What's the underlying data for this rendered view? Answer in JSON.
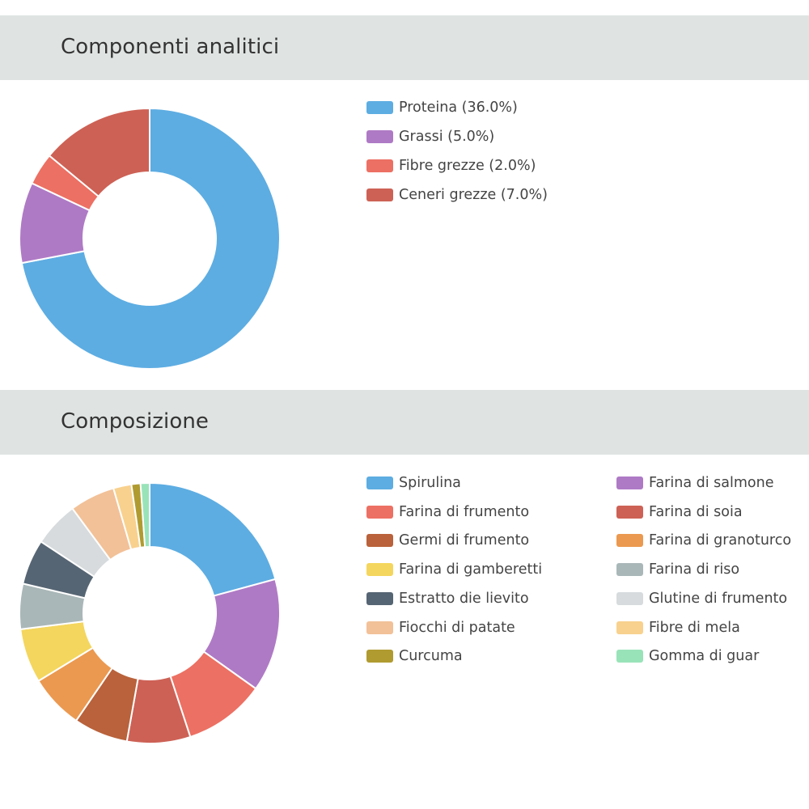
{
  "sections": [
    {
      "title": "Componenti analitici",
      "chart_data": {
        "type": "pie",
        "variant": "donut",
        "title": "Componenti analitici",
        "categories": [
          "Proteina",
          "Grassi",
          "Fibre grezze",
          "Ceneri grezze"
        ],
        "values": [
          36.0,
          5.0,
          2.0,
          7.0
        ],
        "legend_labels": [
          "Proteina (36.0%)",
          "Grassi (5.0%)",
          "Fibre grezze (2.0%)",
          "Ceneri grezze (7.0%)"
        ],
        "colors": [
          "#5dade2",
          "#af7ac5",
          "#ec7063",
          "#cd6155"
        ],
        "legend_position": "right"
      }
    },
    {
      "title": "Composizione",
      "chart_data": {
        "type": "pie",
        "variant": "donut",
        "title": "Composizione",
        "categories": [
          "Spirulina",
          "Farina di salmone",
          "Farina di frumento",
          "Farina di soia",
          "Germi di frumento",
          "Farina di granoturco",
          "Farina di gamberetti",
          "Farina di riso",
          "Estratto die lievito",
          "Glutine di frumento",
          "Fiocchi di patate",
          "Fibre di mela",
          "Curcuma",
          "Gomma di guar"
        ],
        "values": [
          18.5,
          12.5,
          9.0,
          7.0,
          6.0,
          6.0,
          6.0,
          5.0,
          5.0,
          5.0,
          5.0,
          2.0,
          1.0,
          1.0
        ],
        "legend_labels": [
          "Spirulina",
          "Farina di salmone",
          "Farina di frumento",
          "Farina di soia",
          "Germi di frumento",
          "Farina di granoturco",
          "Farina di gamberetti",
          "Farina di riso",
          "Estratto die lievito",
          "Glutine di frumento",
          "Fiocchi di patate",
          "Fibre di mela",
          "Curcuma",
          "Gomma di guar"
        ],
        "colors": [
          "#5dade2",
          "#af7ac5",
          "#ec7063",
          "#cd6155",
          "#b9623b",
          "#eb9950",
          "#f4d65e",
          "#aab7b8",
          "#566573",
          "#d7dbdd",
          "#f2c198",
          "#f8d18e",
          "#b09b30",
          "#99e3b9"
        ],
        "legend_position": "right"
      }
    }
  ]
}
